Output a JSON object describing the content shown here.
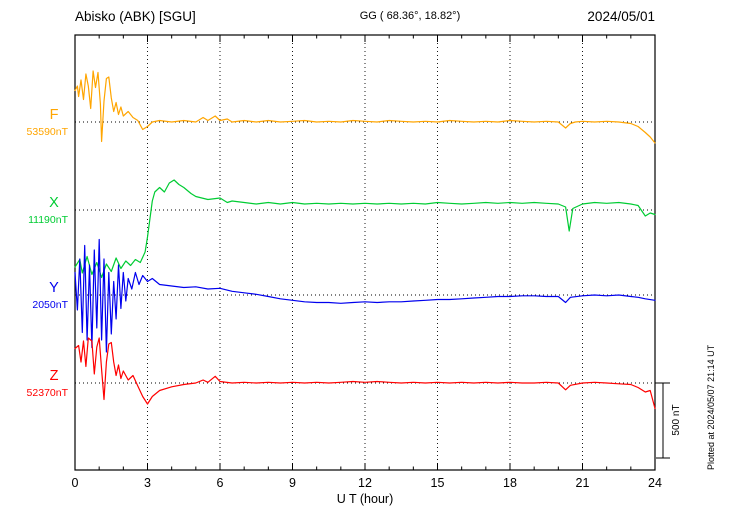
{
  "header": {
    "station": "Abisko (ABK)  [SGU]",
    "coords": "GG ( 68.36°,  18.82°)",
    "date": "2024/05/01"
  },
  "axis": {
    "xlabel": "U T (hour)"
  },
  "scale_bar": {
    "label": "500 nT",
    "nT": 500
  },
  "plotted_note": "Plotted at 2024/05/07 21:14 UT",
  "chart_data": {
    "type": "line",
    "title": "Abisko (ABK) [SGU] magnetogram 2024/05/01",
    "xlabel": "U T (hour)",
    "x_range": [
      0,
      24
    ],
    "x_ticks": [
      0,
      3,
      6,
      9,
      12,
      15,
      18,
      21,
      24
    ],
    "x_minor_step": 1,
    "grid": "dotted vertical lines at major ticks; dotted horizontal baseline per component",
    "legend_position": "left-of-axis component labels",
    "scale_nT_per_division": 500,
    "series": [
      {
        "name": "F",
        "color": "#ffa500",
        "baseline_label": "53590nT",
        "baseline_nT": 53590,
        "points": [
          [
            0,
            210
          ],
          [
            0.1,
            240
          ],
          [
            0.15,
            170
          ],
          [
            0.25,
            280
          ],
          [
            0.35,
            150
          ],
          [
            0.45,
            320
          ],
          [
            0.55,
            240
          ],
          [
            0.65,
            90
          ],
          [
            0.75,
            340
          ],
          [
            0.85,
            230
          ],
          [
            0.95,
            330
          ],
          [
            1.05,
            120
          ],
          [
            1.1,
            -130
          ],
          [
            1.2,
            140
          ],
          [
            1.3,
            290
          ],
          [
            1.4,
            300
          ],
          [
            1.5,
            160
          ],
          [
            1.6,
            70
          ],
          [
            1.7,
            130
          ],
          [
            1.8,
            50
          ],
          [
            1.9,
            100
          ],
          [
            2,
            40
          ],
          [
            2.2,
            70
          ],
          [
            2.4,
            30
          ],
          [
            2.6,
            10
          ],
          [
            2.8,
            -50
          ],
          [
            3,
            -30
          ],
          [
            3.2,
            0
          ],
          [
            3.5,
            10
          ],
          [
            4,
            0
          ],
          [
            4.5,
            10
          ],
          [
            5,
            0
          ],
          [
            5.3,
            30
          ],
          [
            5.5,
            10
          ],
          [
            5.8,
            40
          ],
          [
            6,
            10
          ],
          [
            6.3,
            20
          ],
          [
            6.5,
            0
          ],
          [
            7,
            10
          ],
          [
            7.5,
            0
          ],
          [
            8,
            10
          ],
          [
            8.5,
            0
          ],
          [
            9,
            5
          ],
          [
            9.5,
            10
          ],
          [
            10,
            0
          ],
          [
            10.5,
            5
          ],
          [
            11,
            0
          ],
          [
            11.5,
            10
          ],
          [
            12,
            5
          ],
          [
            12.5,
            0
          ],
          [
            13,
            10
          ],
          [
            13.5,
            5
          ],
          [
            14,
            0
          ],
          [
            14.5,
            5
          ],
          [
            15,
            0
          ],
          [
            15.5,
            10
          ],
          [
            16,
            5
          ],
          [
            16.5,
            0
          ],
          [
            17,
            5
          ],
          [
            17.5,
            0
          ],
          [
            18,
            10
          ],
          [
            18.5,
            5
          ],
          [
            19,
            0
          ],
          [
            19.5,
            5
          ],
          [
            20,
            0
          ],
          [
            20.3,
            -40
          ],
          [
            20.5,
            -10
          ],
          [
            20.7,
            0
          ],
          [
            21,
            5
          ],
          [
            21.5,
            0
          ],
          [
            22,
            5
          ],
          [
            22.5,
            0
          ],
          [
            23,
            -10
          ],
          [
            23.3,
            -30
          ],
          [
            23.6,
            -70
          ],
          [
            23.8,
            -100
          ],
          [
            24,
            -140
          ]
        ]
      },
      {
        "name": "X",
        "color": "#00cc33",
        "baseline_label": "11190nT",
        "baseline_nT": 11190,
        "points": [
          [
            0,
            -380
          ],
          [
            0.2,
            -330
          ],
          [
            0.3,
            -420
          ],
          [
            0.5,
            -310
          ],
          [
            0.7,
            -430
          ],
          [
            0.9,
            -350
          ],
          [
            1.1,
            -450
          ],
          [
            1.3,
            -360
          ],
          [
            1.5,
            -410
          ],
          [
            1.7,
            -320
          ],
          [
            1.9,
            -390
          ],
          [
            2.1,
            -340
          ],
          [
            2.3,
            -370
          ],
          [
            2.5,
            -330
          ],
          [
            2.7,
            -350
          ],
          [
            2.9,
            -280
          ],
          [
            3,
            -180
          ],
          [
            3.1,
            -60
          ],
          [
            3.2,
            60
          ],
          [
            3.3,
            120
          ],
          [
            3.5,
            150
          ],
          [
            3.7,
            120
          ],
          [
            3.9,
            180
          ],
          [
            4.1,
            200
          ],
          [
            4.3,
            170
          ],
          [
            4.5,
            150
          ],
          [
            4.8,
            110
          ],
          [
            5,
            90
          ],
          [
            5.5,
            70
          ],
          [
            6,
            80
          ],
          [
            6.3,
            50
          ],
          [
            6.5,
            60
          ],
          [
            7,
            50
          ],
          [
            7.5,
            40
          ],
          [
            8,
            50
          ],
          [
            8.5,
            40
          ],
          [
            9,
            50
          ],
          [
            9.5,
            40
          ],
          [
            10,
            45
          ],
          [
            10.5,
            40
          ],
          [
            11,
            45
          ],
          [
            11.5,
            40
          ],
          [
            12,
            45
          ],
          [
            12.5,
            40
          ],
          [
            13,
            45
          ],
          [
            13.5,
            40
          ],
          [
            14,
            45
          ],
          [
            14.5,
            40
          ],
          [
            15,
            50
          ],
          [
            15.5,
            45
          ],
          [
            16,
            40
          ],
          [
            16.5,
            45
          ],
          [
            17,
            50
          ],
          [
            17.5,
            45
          ],
          [
            18,
            50
          ],
          [
            18.5,
            45
          ],
          [
            19,
            50
          ],
          [
            19.5,
            45
          ],
          [
            20,
            40
          ],
          [
            20.3,
            20
          ],
          [
            20.45,
            -140
          ],
          [
            20.6,
            10
          ],
          [
            21,
            40
          ],
          [
            21.5,
            50
          ],
          [
            22,
            45
          ],
          [
            22.5,
            50
          ],
          [
            23,
            40
          ],
          [
            23.3,
            30
          ],
          [
            23.6,
            -40
          ],
          [
            23.8,
            -20
          ],
          [
            24,
            -30
          ]
        ]
      },
      {
        "name": "Y",
        "color": "#0000ee",
        "baseline_label": "2050nT",
        "baseline_nT": 2050,
        "points": [
          [
            0,
            150
          ],
          [
            0.1,
            -100
          ],
          [
            0.2,
            240
          ],
          [
            0.3,
            -250
          ],
          [
            0.4,
            330
          ],
          [
            0.5,
            -300
          ],
          [
            0.6,
            200
          ],
          [
            0.7,
            -350
          ],
          [
            0.8,
            300
          ],
          [
            0.9,
            -220
          ],
          [
            1,
            370
          ],
          [
            1.1,
            -300
          ],
          [
            1.2,
            240
          ],
          [
            1.3,
            -380
          ],
          [
            1.4,
            150
          ],
          [
            1.5,
            -260
          ],
          [
            1.6,
            90
          ],
          [
            1.7,
            -160
          ],
          [
            1.8,
            200
          ],
          [
            1.9,
            -90
          ],
          [
            2,
            150
          ],
          [
            2.1,
            -40
          ],
          [
            2.2,
            110
          ],
          [
            2.35,
            40
          ],
          [
            2.5,
            150
          ],
          [
            2.65,
            70
          ],
          [
            2.8,
            130
          ],
          [
            3,
            90
          ],
          [
            3.2,
            110
          ],
          [
            3.5,
            70
          ],
          [
            4,
            60
          ],
          [
            4.5,
            50
          ],
          [
            5,
            55
          ],
          [
            5.5,
            40
          ],
          [
            6,
            45
          ],
          [
            6.5,
            25
          ],
          [
            7,
            15
          ],
          [
            7.5,
            5
          ],
          [
            8,
            -10
          ],
          [
            8.5,
            -25
          ],
          [
            9,
            -35
          ],
          [
            9.5,
            -45
          ],
          [
            10,
            -50
          ],
          [
            10.5,
            -50
          ],
          [
            11,
            -55
          ],
          [
            11.5,
            -50
          ],
          [
            12,
            -45
          ],
          [
            12.5,
            -50
          ],
          [
            13,
            -45
          ],
          [
            13.5,
            -45
          ],
          [
            14,
            -40
          ],
          [
            14.5,
            -35
          ],
          [
            15,
            -30
          ],
          [
            15.5,
            -30
          ],
          [
            16,
            -25
          ],
          [
            16.5,
            -20
          ],
          [
            17,
            -15
          ],
          [
            17.5,
            -10
          ],
          [
            18,
            -10
          ],
          [
            18.5,
            -5
          ],
          [
            19,
            -5
          ],
          [
            19.5,
            -10
          ],
          [
            20,
            -10
          ],
          [
            20.3,
            -50
          ],
          [
            20.5,
            -15
          ],
          [
            21,
            -5
          ],
          [
            21.5,
            0
          ],
          [
            22,
            -5
          ],
          [
            22.5,
            0
          ],
          [
            23,
            -10
          ],
          [
            23.3,
            -15
          ],
          [
            23.6,
            -25
          ],
          [
            24,
            -35
          ]
        ]
      },
      {
        "name": "Z",
        "color": "#ff0000",
        "baseline_label": "52370nT",
        "baseline_nT": 52370,
        "points": [
          [
            0,
            230
          ],
          [
            0.15,
            250
          ],
          [
            0.25,
            140
          ],
          [
            0.35,
            280
          ],
          [
            0.45,
            110
          ],
          [
            0.55,
            300
          ],
          [
            0.7,
            280
          ],
          [
            0.8,
            60
          ],
          [
            0.9,
            240
          ],
          [
            1,
            300
          ],
          [
            1.1,
            90
          ],
          [
            1.2,
            -110
          ],
          [
            1.3,
            140
          ],
          [
            1.4,
            260
          ],
          [
            1.5,
            270
          ],
          [
            1.6,
            140
          ],
          [
            1.7,
            50
          ],
          [
            1.8,
            120
          ],
          [
            1.9,
            30
          ],
          [
            2,
            80
          ],
          [
            2.2,
            20
          ],
          [
            2.4,
            50
          ],
          [
            2.6,
            -20
          ],
          [
            2.8,
            -90
          ],
          [
            3,
            -140
          ],
          [
            3.2,
            -90
          ],
          [
            3.5,
            -50
          ],
          [
            4,
            -25
          ],
          [
            4.5,
            -10
          ],
          [
            5,
            0
          ],
          [
            5.3,
            20
          ],
          [
            5.5,
            5
          ],
          [
            5.8,
            45
          ],
          [
            6,
            10
          ],
          [
            6.5,
            0
          ],
          [
            7,
            5
          ],
          [
            7.5,
            0
          ],
          [
            8,
            5
          ],
          [
            8.5,
            0
          ],
          [
            9,
            5
          ],
          [
            9.5,
            0
          ],
          [
            10,
            5
          ],
          [
            10.5,
            0
          ],
          [
            11,
            5
          ],
          [
            11.5,
            10
          ],
          [
            12,
            5
          ],
          [
            12.5,
            10
          ],
          [
            13,
            5
          ],
          [
            13.5,
            0
          ],
          [
            14,
            5
          ],
          [
            14.5,
            0
          ],
          [
            15,
            5
          ],
          [
            15.5,
            0
          ],
          [
            16,
            5
          ],
          [
            16.5,
            0
          ],
          [
            17,
            5
          ],
          [
            17.5,
            0
          ],
          [
            18,
            5
          ],
          [
            18.5,
            0
          ],
          [
            19,
            0
          ],
          [
            19.5,
            5
          ],
          [
            20,
            0
          ],
          [
            20.3,
            -45
          ],
          [
            20.5,
            -15
          ],
          [
            21,
            0
          ],
          [
            21.5,
            5
          ],
          [
            22,
            0
          ],
          [
            22.5,
            -5
          ],
          [
            23,
            -10
          ],
          [
            23.3,
            -30
          ],
          [
            23.6,
            -60
          ],
          [
            23.8,
            -50
          ],
          [
            24,
            -170
          ]
        ]
      }
    ]
  }
}
